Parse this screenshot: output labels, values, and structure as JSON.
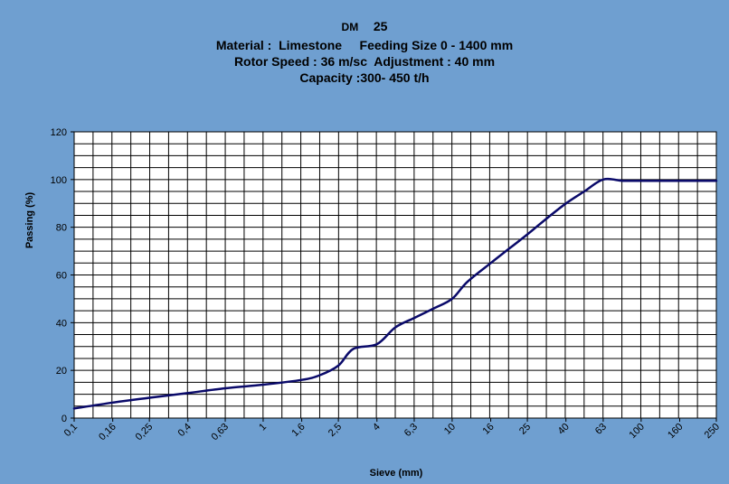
{
  "chart_data": {
    "type": "line",
    "title_lines": [
      {
        "model": "DM",
        "number": "25"
      },
      "Material :  Limestone     Feeding Size 0 - 1400 mm",
      "Rotor Speed : 36 m/sc  Adjustment : 40 mm",
      "Capacity :300- 450 t/h"
    ],
    "xlabel": "Sieve (mm)",
    "ylabel": "Passing  (%)",
    "x_tick_labels": [
      "0,1",
      "0,16",
      "0,25",
      "0,4",
      "0,63",
      "1",
      "1,6",
      "2,5",
      "4",
      "6,3",
      "10",
      "16",
      "25",
      "40",
      "63",
      "100",
      "160",
      "250"
    ],
    "x_scale": "log",
    "xlim": [
      0.1,
      250
    ],
    "ylim": [
      0,
      120
    ],
    "y_ticks": [
      0,
      20,
      40,
      60,
      80,
      100,
      120
    ],
    "grid": true,
    "series": [
      {
        "x": [
          0.1,
          0.16,
          0.25,
          0.4,
          0.63,
          1,
          1.6,
          2,
          2.5,
          3,
          4,
          5,
          6.3,
          8,
          10,
          12,
          16,
          20,
          25,
          32,
          40,
          50,
          63,
          80,
          100,
          160,
          250
        ],
        "y": [
          4,
          6.5,
          8.5,
          10.5,
          12.5,
          14,
          16,
          18,
          22,
          29,
          31,
          38,
          42,
          46,
          50,
          57,
          65,
          71,
          77,
          84,
          90,
          95,
          100,
          99.5,
          99.5,
          99.5,
          99.5
        ]
      }
    ],
    "colors": {
      "background": "#6f9fd0",
      "plot_area": "#ffffff",
      "line": "#0a0a6a",
      "grid": "#000000"
    }
  }
}
